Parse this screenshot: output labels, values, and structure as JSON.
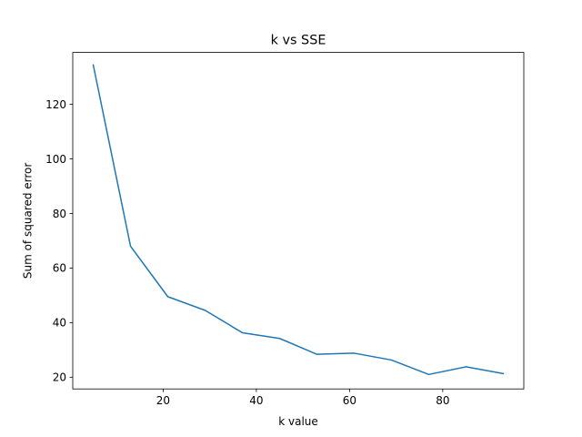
{
  "chart_data": {
    "type": "line",
    "title": "k vs SSE",
    "xlabel": "k value",
    "ylabel": "Sum of squared error",
    "xlim": [
      0.6,
      97.4
    ],
    "ylim": [
      15.7,
      139.0
    ],
    "xticks": [
      20,
      40,
      60,
      80
    ],
    "yticks": [
      20,
      40,
      60,
      80,
      100,
      120
    ],
    "grid": false,
    "series": [
      {
        "color": "#1f77b4",
        "x": [
          5,
          13,
          21,
          29,
          37,
          45,
          53,
          61,
          69,
          77,
          85,
          93
        ],
        "y": [
          134.4,
          68.0,
          49.5,
          44.5,
          36.3,
          34.2,
          28.4,
          28.8,
          26.3,
          21.0,
          23.8,
          21.3
        ]
      }
    ]
  }
}
